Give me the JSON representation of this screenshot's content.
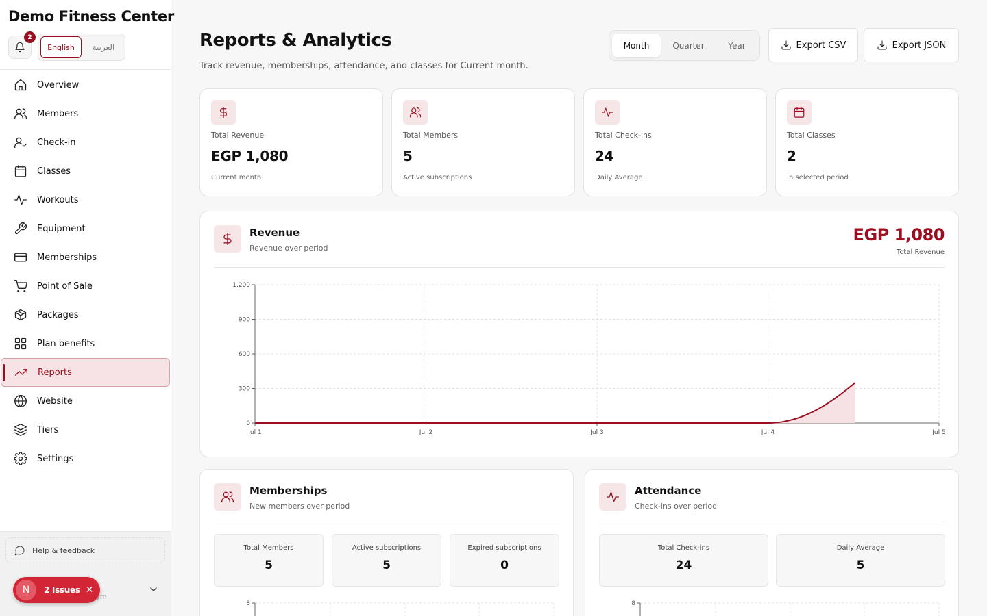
{
  "app": {
    "brand": "Demo Fitness Center",
    "notification_count": "2",
    "languages": [
      "English",
      "العربية"
    ],
    "selected_language": "English"
  },
  "sidebar": {
    "items": [
      {
        "label": "Overview",
        "icon": "home-icon"
      },
      {
        "label": "Members",
        "icon": "users-icon"
      },
      {
        "label": "Check-in",
        "icon": "user-check-icon"
      },
      {
        "label": "Classes",
        "icon": "calendar-icon"
      },
      {
        "label": "Workouts",
        "icon": "activity-icon"
      },
      {
        "label": "Equipment",
        "icon": "wrench-icon"
      },
      {
        "label": "Memberships",
        "icon": "credit-card-icon"
      },
      {
        "label": "Point of Sale",
        "icon": "cart-icon"
      },
      {
        "label": "Packages",
        "icon": "package-icon"
      },
      {
        "label": "Plan benefits",
        "icon": "grid-icon"
      },
      {
        "label": "Reports",
        "icon": "trending-up-icon",
        "active": true
      },
      {
        "label": "Website",
        "icon": "globe-icon"
      },
      {
        "label": "Tiers",
        "icon": "layers-icon"
      },
      {
        "label": "Settings",
        "icon": "gear-icon"
      }
    ],
    "help_label": "Help & feedback",
    "footer_sub": "ym"
  },
  "issues_pill": {
    "avatar": "N",
    "label": "2 Issues"
  },
  "header": {
    "title": "Reports & Analytics",
    "subtitle": "Track revenue, memberships, attendance, and classes for Current month.",
    "periods": [
      "Month",
      "Quarter",
      "Year"
    ],
    "selected_period": "Month",
    "export_csv": "Export CSV",
    "export_json": "Export JSON"
  },
  "stats": [
    {
      "label": "Total Revenue",
      "value": "EGP 1,080",
      "sub": "Current month",
      "icon": "dollar-icon"
    },
    {
      "label": "Total Members",
      "value": "5",
      "sub": "Active subscriptions",
      "icon": "users-icon"
    },
    {
      "label": "Total Check-ins",
      "value": "24",
      "sub": "Daily Average",
      "icon": "activity-icon"
    },
    {
      "label": "Total Classes",
      "value": "2",
      "sub": "In selected period",
      "icon": "calendar-icon"
    }
  ],
  "revenue": {
    "title": "Revenue",
    "subtitle": "Revenue over period",
    "total": "EGP 1,080",
    "total_label": "Total Revenue"
  },
  "memberships": {
    "title": "Memberships",
    "subtitle": "New members over period",
    "minis": [
      {
        "label": "Total Members",
        "value": "5"
      },
      {
        "label": "Active subscriptions",
        "value": "5"
      },
      {
        "label": "Expired subscriptions",
        "value": "0"
      }
    ]
  },
  "attendance": {
    "title": "Attendance",
    "subtitle": "Check-ins over period",
    "minis": [
      {
        "label": "Total Check-ins",
        "value": "24"
      },
      {
        "label": "Daily Average",
        "value": "5"
      }
    ]
  },
  "colors": {
    "accent": "#9b1020",
    "accent_soft": "#f7e6e8",
    "fill": "#f6e2e4"
  },
  "chart_data": [
    {
      "type": "area",
      "title": "Revenue",
      "x": [
        "Jul 1",
        "Jul 2",
        "Jul 3",
        "Jul 4",
        "Jul 4.5"
      ],
      "x_ticks": [
        "Jul 1",
        "Jul 2",
        "Jul 3",
        "Jul 4",
        "Jul 5"
      ],
      "y_ticks": [
        "0",
        "300",
        "600",
        "900",
        "1,200"
      ],
      "ylim": [
        0,
        1200
      ],
      "series": [
        {
          "values": [
            0,
            0,
            0,
            0,
            350
          ]
        }
      ],
      "grid": true
    },
    {
      "type": "line",
      "title": "Memberships",
      "y_ticks": [
        "8"
      ],
      "ylim": [
        0,
        8
      ]
    },
    {
      "type": "line",
      "title": "Attendance",
      "y_ticks": [
        "8"
      ],
      "ylim": [
        0,
        8
      ]
    }
  ]
}
